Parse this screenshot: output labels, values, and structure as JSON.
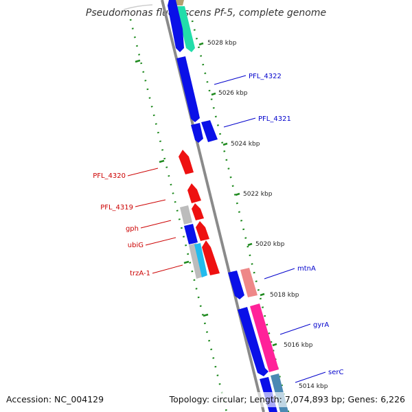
{
  "title": "Pseudomonas fluorescens Pf-5, complete genome",
  "footer": {
    "accession": "Accession: NC_004129",
    "summary": "Topology: circular; Length: 7,074,893 bp; Genes: 6,226"
  },
  "colors": {
    "backbone": "#8a8a8a",
    "ticks": "#1f8a1f",
    "forward_label": "#0000cc",
    "reverse_label": "#cc0000",
    "blue": "#0a10e8",
    "red": "#ee1111",
    "gray": "#bcbcbc",
    "cyan": "#22bbee",
    "teal": "#22ddaa",
    "salmon": "#ee8888",
    "pink": "#ff2299",
    "steel": "#4b89b3",
    "tan": "#b3a070"
  },
  "kbp_labels": [
    "5028 kbp",
    "5026 kbp",
    "5024 kbp",
    "5022 kbp",
    "5020 kbp",
    "5018 kbp",
    "5016 kbp",
    "5014 kbp"
  ],
  "forward_labels": [
    "PFL_4322",
    "PFL_4321",
    "mtnA",
    "gyrA",
    "serC"
  ],
  "reverse_labels": [
    "PFL_4320",
    "PFL_4319",
    "gph",
    "ubiG",
    "trzA-1"
  ]
}
